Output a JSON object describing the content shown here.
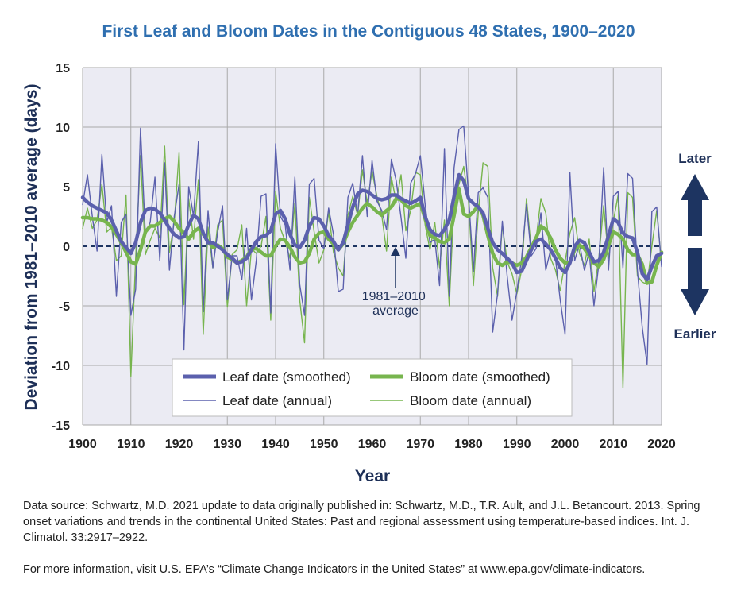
{
  "chart_data": {
    "type": "line",
    "title": "First Leaf and Bloom Dates in the Contiguous 48 States, 1900–2020",
    "xlabel": "Year",
    "ylabel": "Deviation from 1981–2010 average (days)",
    "xlim": [
      1900,
      2020
    ],
    "ylim": [
      -15,
      15
    ],
    "grid": true,
    "x_ticks": [
      1900,
      1910,
      1920,
      1930,
      1940,
      1950,
      1960,
      1970,
      1980,
      1990,
      2000,
      2010,
      2020
    ],
    "y_ticks": [
      15,
      10,
      5,
      0,
      -5,
      -10,
      -15
    ],
    "baseline_label": "1981–2010\naverage",
    "side_labels": {
      "later": "Later",
      "earlier": "Earlier"
    },
    "legend_position": "bottom-center",
    "colors": {
      "leaf": "#5b60ad",
      "bloom": "#77b54e",
      "arrow": "#1d3461",
      "grid": "#a9a9a9",
      "plot_bg": "#ebebf3"
    },
    "series": [
      {
        "name": "Leaf date (smoothed)",
        "key": "leaf_smooth",
        "start_year": 1900,
        "values": [
          4.1,
          3.7,
          3.4,
          3.2,
          3.0,
          2.8,
          2.2,
          1.3,
          0.4,
          -0.1,
          -0.6,
          0.3,
          2.0,
          3.0,
          3.2,
          3.1,
          2.8,
          2.2,
          1.5,
          1.0,
          0.7,
          0.8,
          1.8,
          2.6,
          2.3,
          1.1,
          0.3,
          0.3,
          0.0,
          -0.3,
          -0.7,
          -1.0,
          -1.4,
          -1.3,
          -1.0,
          -0.3,
          0.4,
          0.8,
          0.9,
          1.3,
          2.7,
          3.0,
          2.3,
          1.0,
          0.1,
          -0.1,
          0.5,
          1.7,
          2.4,
          2.3,
          1.7,
          0.9,
          0.4,
          -0.3,
          0.3,
          1.8,
          3.3,
          4.4,
          4.7,
          4.6,
          4.3,
          4.0,
          3.9,
          4.0,
          4.3,
          4.3,
          4.0,
          3.8,
          3.6,
          3.8,
          4.1,
          2.5,
          1.4,
          1.0,
          0.9,
          1.4,
          2.2,
          4.2,
          6.0,
          5.5,
          4.0,
          3.6,
          3.3,
          2.8,
          1.5,
          0.3,
          -0.3,
          -0.6,
          -1.0,
          -1.4,
          -2.2,
          -2.1,
          -1.2,
          -0.3,
          0.4,
          0.6,
          0.2,
          -0.3,
          -1.0,
          -1.8,
          -2.2,
          -1.4,
          0.0,
          0.5,
          0.3,
          -0.5,
          -1.3,
          -1.2,
          -0.5,
          0.9,
          2.3,
          2.0,
          1.1,
          0.8,
          0.7,
          -0.5,
          -2.3,
          -2.8,
          -1.7,
          -0.8,
          -0.6
        ]
      },
      {
        "name": "Bloom date (smoothed)",
        "key": "bloom_smooth",
        "start_year": 1900,
        "values": [
          2.4,
          2.4,
          2.3,
          2.3,
          2.2,
          2.0,
          1.6,
          1.0,
          0.3,
          -0.5,
          -1.3,
          -1.5,
          -0.3,
          1.2,
          1.7,
          1.7,
          2.0,
          2.3,
          2.5,
          2.1,
          1.5,
          1.1,
          0.6,
          1.2,
          1.5,
          1.0,
          0.4,
          -0.1,
          0.1,
          -0.2,
          -0.9,
          -1.1,
          -1.4,
          -1.2,
          -0.9,
          -0.2,
          -0.2,
          -0.5,
          -0.8,
          -0.8,
          0.0,
          0.6,
          0.5,
          -0.1,
          -0.9,
          -1.4,
          -1.3,
          -0.6,
          0.6,
          1.1,
          1.2,
          0.6,
          0.2,
          -0.3,
          0.2,
          1.2,
          2.0,
          2.6,
          3.2,
          3.6,
          3.3,
          2.9,
          2.6,
          3.0,
          3.3,
          4.0,
          3.9,
          3.4,
          3.2,
          3.4,
          3.6,
          2.3,
          0.9,
          0.7,
          0.4,
          0.3,
          0.6,
          2.6,
          4.8,
          2.7,
          2.5,
          2.9,
          3.4,
          2.6,
          0.9,
          -0.6,
          -1.4,
          -1.6,
          -1.3,
          -1.4,
          -1.6,
          -1.4,
          -0.9,
          -0.1,
          0.7,
          1.7,
          1.4,
          0.7,
          -0.3,
          -1.0,
          -1.4,
          -1.3,
          -0.3,
          0.1,
          -0.2,
          -0.8,
          -1.4,
          -1.7,
          -1.1,
          0.1,
          1.2,
          1.0,
          0.6,
          -0.3,
          -0.7,
          -0.7,
          -1.5,
          -3.1,
          -3.0,
          -1.6,
          -0.5
        ]
      },
      {
        "name": "Leaf date (annual)",
        "key": "leaf_annual",
        "start_year": 1900,
        "values": [
          3.5,
          6.0,
          2.5,
          -0.4,
          7.7,
          2.0,
          3.4,
          -4.2,
          2.0,
          2.7,
          -5.8,
          -3.6,
          9.9,
          1.0,
          2.0,
          5.8,
          -1.2,
          7.0,
          -2.0,
          2.5,
          5.2,
          -8.7,
          5.0,
          2.5,
          8.8,
          -5.5,
          3.0,
          -1.8,
          1.2,
          3.4,
          -4.5,
          -0.8,
          -0.8,
          -2.8,
          1.5,
          -4.5,
          -1.2,
          4.2,
          4.4,
          -5.6,
          8.6,
          2.5,
          1.8,
          -2.0,
          5.8,
          -3.2,
          -5.8,
          5.2,
          5.7,
          0.5,
          -0.2,
          3.2,
          1.0,
          -3.8,
          -3.6,
          4.1,
          5.3,
          2.6,
          7.6,
          2.5,
          7.2,
          3.8,
          3.0,
          1.4,
          7.3,
          5.5,
          2.4,
          -1.0,
          5.3,
          6.1,
          7.6,
          3.5,
          0.3,
          0.6,
          -3.3,
          8.2,
          -4.2,
          6.6,
          9.8,
          10.1,
          4.2,
          -2.1,
          4.5,
          4.9,
          4.1,
          -7.2,
          -4.0,
          2.1,
          -2.5,
          -6.2,
          -3.8,
          -1.0,
          3.5,
          -0.8,
          -0.2,
          2.8,
          -2.0,
          -0.3,
          -1.0,
          -4.5,
          -7.4,
          6.2,
          -1.2,
          0.2,
          -2.0,
          -0.5,
          -5.0,
          -1.5,
          6.6,
          -2.0,
          4.2,
          4.6,
          -1.8,
          6.1,
          5.7,
          -2.0,
          -6.8,
          -9.9,
          2.9,
          3.3,
          -1.7
        ]
      },
      {
        "name": "Bloom date (annual)",
        "key": "bloom_annual",
        "start_year": 1900,
        "values": [
          1.5,
          3.2,
          1.5,
          2.2,
          5.2,
          1.2,
          1.6,
          -1.2,
          -0.8,
          4.3,
          -10.9,
          -1.0,
          7.6,
          -0.7,
          0.5,
          1.5,
          0.7,
          8.4,
          -0.5,
          2.0,
          7.9,
          -4.9,
          4.0,
          0.6,
          5.6,
          -7.4,
          1.6,
          -1.8,
          1.8,
          2.2,
          -5.1,
          -0.7,
          -0.3,
          1.8,
          -5.0,
          -0.2,
          -0.6,
          0.0,
          2.5,
          -6.2,
          4.6,
          1.5,
          0.4,
          -1.0,
          3.6,
          -4.5,
          -8.1,
          4.1,
          1.2,
          -1.4,
          -0.3,
          2.9,
          -0.5,
          -1.8,
          -2.5,
          2.6,
          4.2,
          2.6,
          6.4,
          3.6,
          6.3,
          4.2,
          2.6,
          -0.4,
          5.8,
          3.7,
          6.0,
          1.3,
          3.0,
          6.2,
          6.0,
          1.8,
          -0.3,
          2.0,
          -1.8,
          2.2,
          -5.0,
          4.0,
          5.2,
          6.7,
          3.7,
          -3.3,
          2.8,
          7.0,
          6.7,
          -1.8,
          -4.2,
          1.8,
          -1.3,
          -2.3,
          -4.0,
          -2.0,
          4.0,
          -0.3,
          0.6,
          4.0,
          2.8,
          -1.0,
          -2.0,
          -3.7,
          -1.3,
          1.1,
          2.4,
          -0.6,
          -1.6,
          0.6,
          -3.8,
          -1.0,
          3.4,
          -1.0,
          2.1,
          4.3,
          -11.9,
          4.5,
          4.1,
          -2.5,
          -3.0,
          -3.2,
          0.0,
          3.0,
          -1.5
        ]
      }
    ]
  },
  "source_note": "Data source: Schwartz, M.D. 2021 update to data originally published in: Schwartz, M.D., T.R. Ault, and J.L. Betancourt. 2013. Spring onset variations and trends in the continental United States: Past and regional assessment using temperature-based indices. Int. J. Climatol. 33:2917–2922.",
  "more_info": "For more information, visit U.S. EPA’s “Climate Change Indicators in the United States” at www.epa.gov/climate-indicators."
}
